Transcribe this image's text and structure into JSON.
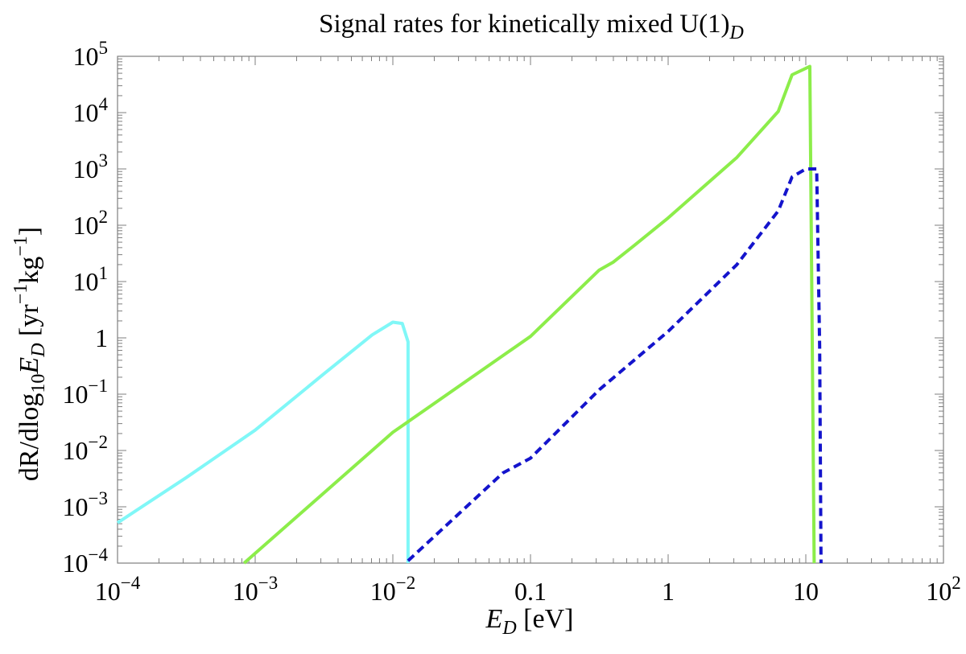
{
  "chart_data": {
    "type": "line",
    "title_main": "Signal rates for kinetically mixed U(1)",
    "title_sub": "D",
    "xlabel_main": "E",
    "xlabel_sub": "D",
    "xlabel_unit": " [eV]",
    "ylabel_parts": {
      "a": "dR/dlog",
      "b": "10",
      "c": "E",
      "d": "D",
      "e": " [yr",
      "f": "−1",
      "g": "kg",
      "h": "−1",
      "i": "]"
    },
    "x_scale": "log",
    "y_scale": "log",
    "xlim": [
      0.0001,
      100
    ],
    "ylim": [
      0.0001,
      100000
    ],
    "grid": false,
    "legend": "none",
    "x_ticks": [
      {
        "value": 0.0001,
        "base": "10",
        "exp": "−4"
      },
      {
        "value": 0.001,
        "base": "10",
        "exp": "−3"
      },
      {
        "value": 0.01,
        "base": "10",
        "exp": "−2"
      },
      {
        "value": 0.1,
        "base": "0.1",
        "exp": ""
      },
      {
        "value": 1,
        "base": "1",
        "exp": ""
      },
      {
        "value": 10,
        "base": "10",
        "exp": ""
      },
      {
        "value": 100,
        "base": "10",
        "exp": "2"
      }
    ],
    "y_ticks": [
      {
        "value": 0.0001,
        "base": "10",
        "exp": "−4"
      },
      {
        "value": 0.001,
        "base": "10",
        "exp": "−3"
      },
      {
        "value": 0.01,
        "base": "10",
        "exp": "−2"
      },
      {
        "value": 0.1,
        "base": "10",
        "exp": "−1"
      },
      {
        "value": 1,
        "base": "1",
        "exp": ""
      },
      {
        "value": 10,
        "base": "10",
        "exp": "1"
      },
      {
        "value": 100,
        "base": "10",
        "exp": "2"
      },
      {
        "value": 1000,
        "base": "10",
        "exp": "3"
      },
      {
        "value": 10000,
        "base": "10",
        "exp": "4"
      },
      {
        "value": 100000,
        "base": "10",
        "exp": "5"
      }
    ],
    "series": [
      {
        "color": "#80f7f7",
        "dash": "none",
        "x": [
          0.0001,
          0.000316,
          0.001,
          0.00316,
          0.00707,
          0.01,
          0.0117,
          0.0129,
          0.0129,
          0.0129
        ],
        "y": [
          0.00052,
          0.0033,
          0.023,
          0.23,
          1.13,
          1.9,
          1.8,
          0.85,
          0.8,
          0.0001
        ]
      },
      {
        "color": "#8ced4a",
        "dash": "none",
        "x": [
          0.00083,
          0.01,
          0.1,
          0.316,
          0.398,
          0.562,
          1,
          3.16,
          6.31,
          7.94,
          10.7,
          11.5
        ],
        "y": [
          0.0001,
          0.021,
          1.06,
          16,
          22,
          43,
          135,
          1600,
          10500,
          47000,
          66000,
          0.0001
        ]
      },
      {
        "color": "#1414cc",
        "dash": "10,6",
        "x": [
          0.0129,
          0.0631,
          0.1,
          0.316,
          1,
          3.16,
          6.31,
          7.94,
          10,
          12,
          12.6,
          12.9
        ],
        "y": [
          0.00011,
          0.004,
          0.0073,
          0.12,
          1.3,
          20,
          180,
          720,
          1000,
          1000,
          0.7,
          0.0001
        ]
      }
    ]
  }
}
